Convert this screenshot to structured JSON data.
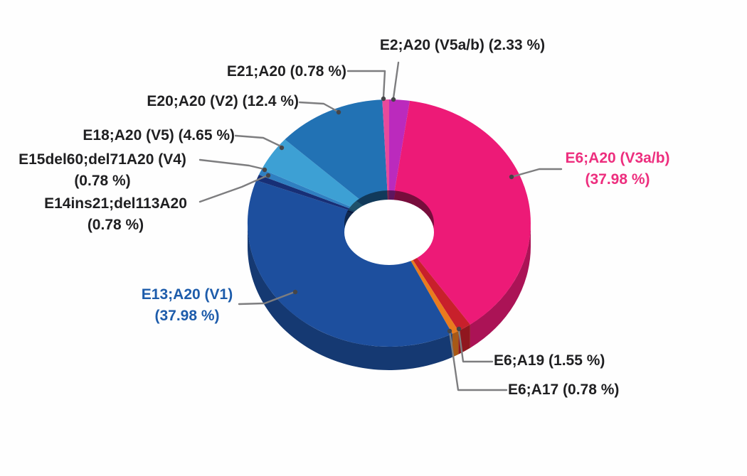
{
  "background_color": "#ffffff",
  "leader_line_color": "#7d7d7f",
  "chart_data": {
    "type": "pie",
    "style": "3d-donut",
    "title": "",
    "unit": "%",
    "start_angle_deg": 0,
    "direction": "clockwise",
    "legend_position": "none",
    "segments": [
      {
        "name": "E2;A20 (V5a/b)",
        "value": 2.33,
        "color": "#bb2abd",
        "label_color": "#1f1f21",
        "label_lines": [
          "E2;A20 (V5a/b) (2.33 %)"
        ]
      },
      {
        "name": "E6;A20 (V3a/b)",
        "value": 37.98,
        "color": "#ed1a77",
        "label_color": "#ed2e7e",
        "label_lines": [
          "E6;A20 (V3a/b)",
          "(37.98 %)"
        ]
      },
      {
        "name": "E6;A19",
        "value": 1.55,
        "color": "#c8202b",
        "label_color": "#1f1f21",
        "label_lines": [
          "E6;A19 (1.55 %)"
        ]
      },
      {
        "name": "E6;A17",
        "value": 0.78,
        "color": "#e97b1e",
        "label_color": "#1f1f21",
        "label_lines": [
          "E6;A17 (0.78 %)"
        ]
      },
      {
        "name": "E13;A20 (V1)",
        "value": 37.98,
        "color": "#1d4f9e",
        "label_color": "#1d5cab",
        "label_lines": [
          "E13;A20 (V1)",
          "(37.98 %)"
        ]
      },
      {
        "name": "E14ins21;del113A20",
        "value": 0.78,
        "color": "#172f76",
        "label_color": "#1f1f21",
        "label_lines": [
          "E14ins21;del113A20",
          "(0.78 %)"
        ]
      },
      {
        "name": "E15del60;del71A20 (V4)",
        "value": 0.78,
        "color": "#2f7fc1",
        "label_color": "#1f1f21",
        "label_lines": [
          "E15del60;del71A20 (V4)",
          "(0.78 %)"
        ]
      },
      {
        "name": "E18;A20 (V5)",
        "value": 4.65,
        "color": "#3da0d4",
        "label_color": "#1f1f21",
        "label_lines": [
          "E18;A20 (V5) (4.65 %)"
        ]
      },
      {
        "name": "E20;A20 (V2)",
        "value": 12.4,
        "color": "#2272b4",
        "label_color": "#1f1f21",
        "label_lines": [
          "E20;A20 (V2) (12.4 %)"
        ]
      },
      {
        "name": "E21;A20",
        "value": 0.78,
        "color": "#e84a9b",
        "label_color": "#1f1f21",
        "label_lines": [
          "E21;A20 (0.78 %)"
        ]
      }
    ]
  }
}
